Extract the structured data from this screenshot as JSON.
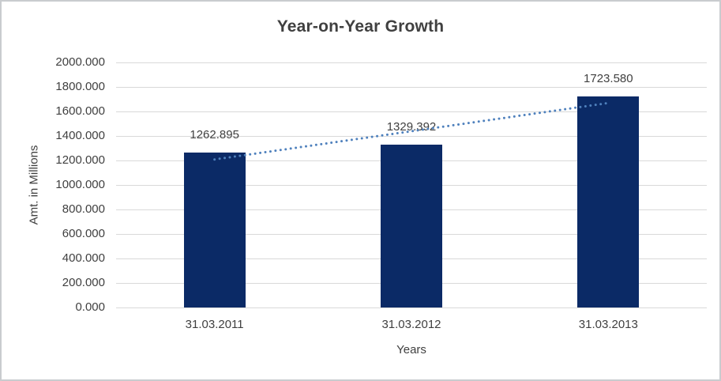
{
  "frame": {
    "background": "#ffffff",
    "border_color": "#c9cccf"
  },
  "chart_data": {
    "type": "bar",
    "title": "Year-on-Year Growth",
    "categories": [
      "31.03.2011",
      "31.03.2012",
      "31.03.2013"
    ],
    "values": [
      1262.895,
      1329.392,
      1723.58
    ],
    "data_labels": [
      "1262.895",
      "1329.392",
      "1723.580"
    ],
    "xlabel": "Years",
    "ylabel": "Amt. in Millions",
    "ylim": [
      0,
      2000
    ],
    "ytick_step": 200,
    "ytick_labels": [
      "0.000",
      "200.000",
      "400.000",
      "600.000",
      "800.000",
      "1000.000",
      "1200.000",
      "1400.000",
      "1600.000",
      "1800.000",
      "2000.000"
    ],
    "grid": true,
    "legend": "none",
    "trendline": {
      "type": "linear",
      "style": "dotted"
    },
    "colors": {
      "bar": "#0b2a66",
      "trendline": "#4f81bd",
      "gridline": "#d9d9d9",
      "title_text": "#404040",
      "axis_text": "#404040",
      "data_label_text": "#404040"
    }
  }
}
